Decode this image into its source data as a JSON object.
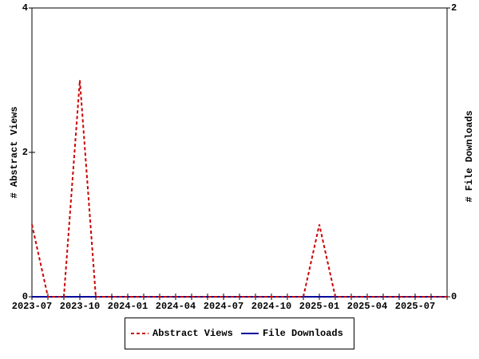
{
  "chart_data": {
    "type": "line",
    "categories": [
      "2023-07",
      null,
      null,
      "2023-10",
      null,
      null,
      "2024-01",
      null,
      null,
      "2024-04",
      null,
      null,
      "2024-07",
      null,
      null,
      "2024-10",
      null,
      null,
      "2025-01",
      null,
      null,
      "2025-04",
      null,
      null,
      "2025-07",
      null,
      null
    ],
    "y_label": "# Abstract Views",
    "y2_label": "# File Downloads",
    "ylim": [
      0,
      4
    ],
    "yticks": [
      0,
      2,
      4
    ],
    "y2lim": [
      0,
      2
    ],
    "y2ticks": [
      0,
      2
    ],
    "series": [
      {
        "name": "Abstract Views",
        "color": "#cc0000",
        "dashed": true,
        "values": [
          1,
          0,
          0,
          3,
          0,
          0,
          0,
          0,
          0,
          0,
          0,
          0,
          0,
          0,
          0,
          0,
          0,
          0,
          1,
          0,
          0,
          0,
          0,
          0,
          0,
          0,
          0
        ]
      },
      {
        "name": "File Downloads",
        "color": "#000099",
        "axis": "y2",
        "dashed": false,
        "values": [
          0,
          0,
          0,
          0,
          0,
          0,
          0,
          0,
          0,
          0,
          0,
          0,
          0,
          0,
          0,
          0,
          0,
          0,
          0,
          0,
          0,
          0,
          0,
          0,
          0,
          0,
          0
        ]
      }
    ]
  }
}
